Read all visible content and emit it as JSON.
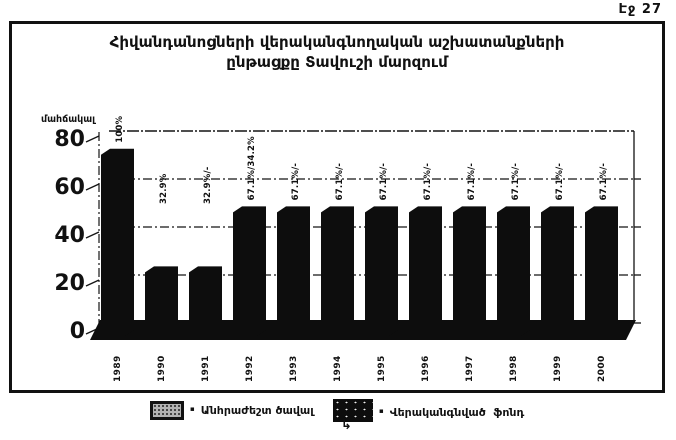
{
  "page": {
    "page_label": "Էջ 27",
    "ink_color": "#111111",
    "background_color": "#ffffff"
  },
  "chart": {
    "title_line1": "Հիվանդանոցների վերականգնողական աշխատանքների",
    "title_line2": "ընթացքը Տավուշի մարզում"
  },
  "chart_data": {
    "type": "bar",
    "style": "3d-column-monochrome-scan",
    "title": "Հիվանդանոցների վերականգնողական աշխատանքների ընթացքը Տավուշի մարզում",
    "ylabel": "մահճակալ",
    "xlabel": "",
    "categories": [
      "1989",
      "1990",
      "1991",
      "1992",
      "1993",
      "1994",
      "1995",
      "1996",
      "1997",
      "1998",
      "1999",
      "2000"
    ],
    "values": [
      73,
      24,
      24,
      49,
      49,
      49,
      49,
      49,
      49,
      49,
      49,
      49
    ],
    "bar_labels": [
      "100%",
      "32.9%",
      "32.9%/-",
      "67.1%/34.2%",
      "67.1%/-",
      "67.1%/-",
      "67.1%/-",
      "67.1%/-",
      "67.1%/-",
      "67.1%/-",
      "67.1%/-",
      "67.1%/-"
    ],
    "yticks": [
      0,
      20,
      40,
      60,
      80
    ],
    "ylim": [
      0,
      80
    ],
    "grid": true,
    "legend_position": "bottom-outside",
    "bar_color": "#0d0d0d"
  },
  "legend": {
    "items": [
      {
        "bullet": "▪",
        "label": "Անհրաժեշտ ծավալ",
        "swatch": "gray-speckled"
      },
      {
        "bullet": "▪",
        "label": "Վերականգնված  ֆոնդ",
        "swatch": "black-speckled"
      }
    ],
    "callout_arrow": "↳"
  }
}
